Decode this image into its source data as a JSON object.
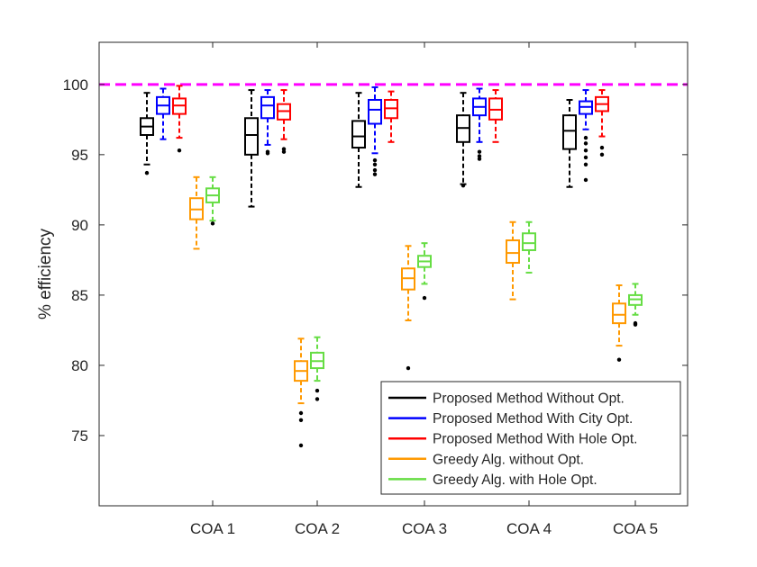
{
  "chart_data": {
    "type": "box",
    "ylabel": "% efficiency",
    "xlabel": "",
    "ylim": [
      70,
      103
    ],
    "yticks": [
      75,
      80,
      85,
      90,
      95,
      100
    ],
    "categories": [
      "COA 1",
      "COA 2",
      "COA 3",
      "COA 4",
      "COA 5"
    ],
    "reference_line": {
      "y": 100,
      "color": "#ff00ff",
      "style": "dashed"
    },
    "grid": false,
    "legend_position": "bottom-right",
    "series": [
      {
        "name": "Proposed Method Without Opt.",
        "color": "#000000",
        "boxes": [
          {
            "whisker_low": 94.3,
            "q1": 96.4,
            "median": 97.0,
            "q3": 97.6,
            "whisker_high": 99.4,
            "outliers": [
              93.7
            ]
          },
          {
            "whisker_low": 91.3,
            "q1": 95.0,
            "median": 96.4,
            "q3": 97.6,
            "whisker_high": 99.6,
            "outliers": []
          },
          {
            "whisker_low": 92.7,
            "q1": 95.5,
            "median": 96.3,
            "q3": 97.4,
            "whisker_high": 99.4,
            "outliers": []
          },
          {
            "whisker_low": 92.9,
            "q1": 95.9,
            "median": 96.9,
            "q3": 97.8,
            "whisker_high": 99.4,
            "outliers": [
              92.8
            ]
          },
          {
            "whisker_low": 92.7,
            "q1": 95.4,
            "median": 96.7,
            "q3": 97.8,
            "whisker_high": 98.9,
            "outliers": []
          }
        ]
      },
      {
        "name": "Proposed Method With City Opt.",
        "color": "#0000ff",
        "boxes": [
          {
            "whisker_low": 96.1,
            "q1": 97.9,
            "median": 98.5,
            "q3": 99.1,
            "whisker_high": 99.7,
            "outliers": []
          },
          {
            "whisker_low": 95.7,
            "q1": 97.6,
            "median": 98.5,
            "q3": 99.1,
            "whisker_high": 99.6,
            "outliers": [
              95.2,
              95.1
            ]
          },
          {
            "whisker_low": 95.1,
            "q1": 97.2,
            "median": 98.2,
            "q3": 98.9,
            "whisker_high": 99.8,
            "outliers": [
              94.6,
              94.3,
              93.9,
              93.6
            ]
          },
          {
            "whisker_low": 95.9,
            "q1": 97.8,
            "median": 98.4,
            "q3": 99.0,
            "whisker_high": 99.7,
            "outliers": [
              95.2,
              94.9,
              94.7
            ]
          },
          {
            "whisker_low": 96.8,
            "q1": 97.9,
            "median": 98.4,
            "q3": 98.8,
            "whisker_high": 99.6,
            "outliers": [
              96.2,
              95.8,
              95.3,
              94.8,
              94.3,
              93.2
            ]
          }
        ]
      },
      {
        "name": "Proposed Method With Hole Opt.",
        "color": "#ff0000",
        "boxes": [
          {
            "whisker_low": 96.2,
            "q1": 97.9,
            "median": 98.5,
            "q3": 99.0,
            "whisker_high": 99.9,
            "outliers": [
              95.3
            ]
          },
          {
            "whisker_low": 96.1,
            "q1": 97.5,
            "median": 98.1,
            "q3": 98.6,
            "whisker_high": 99.6,
            "outliers": [
              95.4,
              95.2
            ]
          },
          {
            "whisker_low": 95.9,
            "q1": 97.6,
            "median": 98.3,
            "q3": 98.9,
            "whisker_high": 99.5,
            "outliers": []
          },
          {
            "whisker_low": 95.9,
            "q1": 97.5,
            "median": 98.2,
            "q3": 99.0,
            "whisker_high": 99.6,
            "outliers": []
          },
          {
            "whisker_low": 96.3,
            "q1": 98.1,
            "median": 98.6,
            "q3": 99.1,
            "whisker_high": 99.6,
            "outliers": [
              95.5,
              95.0
            ]
          }
        ]
      },
      {
        "name": "Greedy Alg. without Opt.",
        "color": "#ff9900",
        "boxes": [
          {
            "whisker_low": 88.3,
            "q1": 90.4,
            "median": 91.1,
            "q3": 91.9,
            "whisker_high": 93.4,
            "outliers": []
          },
          {
            "whisker_low": 77.3,
            "q1": 78.9,
            "median": 79.6,
            "q3": 80.3,
            "whisker_high": 81.9,
            "outliers": [
              76.6,
              76.1,
              74.3
            ]
          },
          {
            "whisker_low": 83.2,
            "q1": 85.4,
            "median": 86.2,
            "q3": 86.9,
            "whisker_high": 88.5,
            "outliers": [
              79.8
            ]
          },
          {
            "whisker_low": 84.7,
            "q1": 87.3,
            "median": 88.0,
            "q3": 88.9,
            "whisker_high": 90.2,
            "outliers": []
          },
          {
            "whisker_low": 81.4,
            "q1": 83.0,
            "median": 83.6,
            "q3": 84.4,
            "whisker_high": 85.7,
            "outliers": [
              80.4
            ]
          }
        ]
      },
      {
        "name": "Greedy Alg. with Hole Opt.",
        "color": "#66dd44",
        "boxes": [
          {
            "whisker_low": 90.3,
            "q1": 91.6,
            "median": 92.1,
            "q3": 92.6,
            "whisker_high": 93.4,
            "outliers": [
              90.1
            ]
          },
          {
            "whisker_low": 78.9,
            "q1": 79.8,
            "median": 80.3,
            "q3": 80.9,
            "whisker_high": 82.0,
            "outliers": [
              78.2,
              77.6
            ]
          },
          {
            "whisker_low": 85.8,
            "q1": 87.0,
            "median": 87.4,
            "q3": 87.8,
            "whisker_high": 88.7,
            "outliers": [
              84.8
            ]
          },
          {
            "whisker_low": 86.6,
            "q1": 88.2,
            "median": 88.7,
            "q3": 89.4,
            "whisker_high": 90.2,
            "outliers": []
          },
          {
            "whisker_low": 83.6,
            "q1": 84.3,
            "median": 84.7,
            "q3": 85.0,
            "whisker_high": 85.8,
            "outliers": [
              83.0,
              82.9
            ]
          }
        ]
      }
    ]
  }
}
